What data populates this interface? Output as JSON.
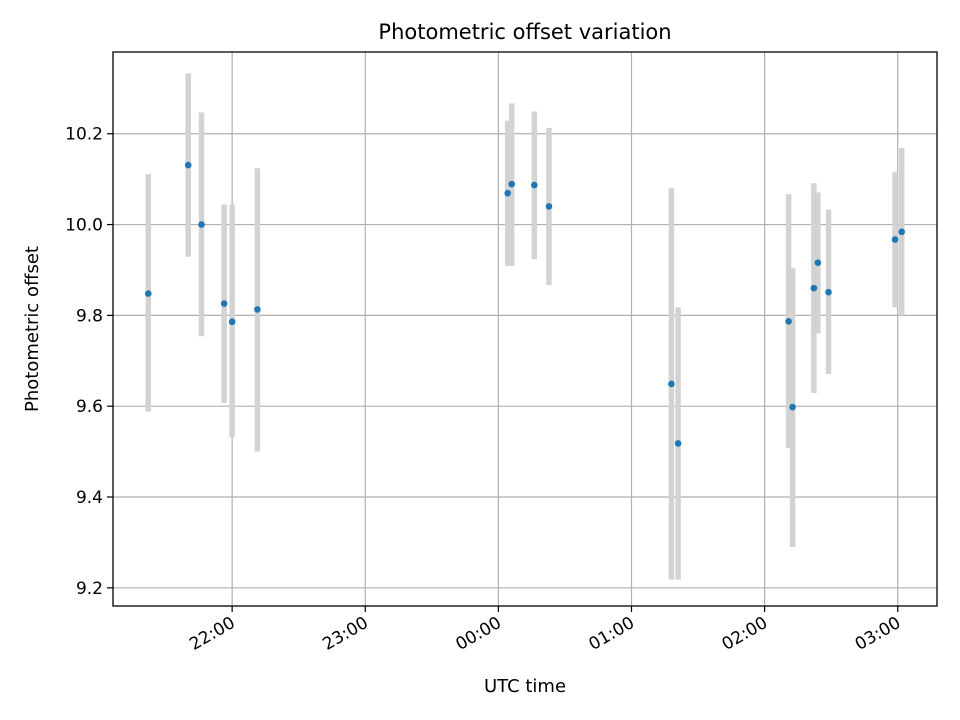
{
  "chart_data": {
    "type": "scatter",
    "title": "Photometric offset variation",
    "xlabel": "UTC time",
    "ylabel": "Photometric offset",
    "x_tick_labels": [
      "22:00",
      "23:00",
      "00:00",
      "01:00",
      "02:00",
      "03:00"
    ],
    "x_tick_hours": [
      22,
      23,
      24,
      25,
      26,
      27
    ],
    "y_ticks": [
      9.2,
      9.4,
      9.6,
      9.8,
      10.0,
      10.2
    ],
    "y_tick_labels": [
      "9.2",
      "9.4",
      "9.6",
      "9.8",
      "10.0",
      "10.2"
    ],
    "xlim_hours": [
      21.105,
      27.295
    ],
    "ylim": [
      9.16,
      10.38
    ],
    "grid": true,
    "legend": "none",
    "colors": {
      "point": "#1f77b4",
      "errorbar": "#d3d3d3",
      "grid": "#b0b0b0"
    },
    "points": [
      {
        "time": "21:22",
        "x": 21.37,
        "y": 9.848,
        "err_low": 9.588,
        "err_high": 10.111
      },
      {
        "time": "21:40",
        "x": 21.67,
        "y": 10.131,
        "err_low": 9.929,
        "err_high": 10.333
      },
      {
        "time": "21:46",
        "x": 21.77,
        "y": 10.0,
        "err_low": 9.754,
        "err_high": 10.247
      },
      {
        "time": "21:56",
        "x": 21.94,
        "y": 9.826,
        "err_low": 9.607,
        "err_high": 10.044
      },
      {
        "time": "22:00",
        "x": 22.0,
        "y": 9.786,
        "err_low": 9.532,
        "err_high": 10.044
      },
      {
        "time": "22:12",
        "x": 22.19,
        "y": 9.813,
        "err_low": 9.5,
        "err_high": 10.124
      },
      {
        "time": "00:04",
        "x": 24.07,
        "y": 10.069,
        "err_low": 9.909,
        "err_high": 10.229
      },
      {
        "time": "00:06",
        "x": 24.1,
        "y": 10.089,
        "err_low": 9.909,
        "err_high": 10.267
      },
      {
        "time": "00:16",
        "x": 24.27,
        "y": 10.087,
        "err_low": 9.924,
        "err_high": 10.249
      },
      {
        "time": "00:23",
        "x": 24.38,
        "y": 10.04,
        "err_low": 9.867,
        "err_high": 10.213
      },
      {
        "time": "01:18",
        "x": 25.3,
        "y": 9.649,
        "err_low": 9.218,
        "err_high": 10.08
      },
      {
        "time": "01:21",
        "x": 25.35,
        "y": 9.518,
        "err_low": 9.218,
        "err_high": 9.818
      },
      {
        "time": "02:10",
        "x": 26.18,
        "y": 9.787,
        "err_low": 9.508,
        "err_high": 10.067
      },
      {
        "time": "02:13",
        "x": 26.21,
        "y": 9.598,
        "err_low": 9.29,
        "err_high": 9.904
      },
      {
        "time": "02:22",
        "x": 26.37,
        "y": 9.86,
        "err_low": 9.629,
        "err_high": 10.091
      },
      {
        "time": "02:24",
        "x": 26.4,
        "y": 9.916,
        "err_low": 9.76,
        "err_high": 10.071
      },
      {
        "time": "02:29",
        "x": 26.48,
        "y": 9.851,
        "err_low": 9.671,
        "err_high": 10.033
      },
      {
        "time": "02:59",
        "x": 26.98,
        "y": 9.967,
        "err_low": 9.818,
        "err_high": 10.116
      },
      {
        "time": "03:01",
        "x": 27.03,
        "y": 9.984,
        "err_low": 9.8,
        "err_high": 10.169
      }
    ]
  }
}
